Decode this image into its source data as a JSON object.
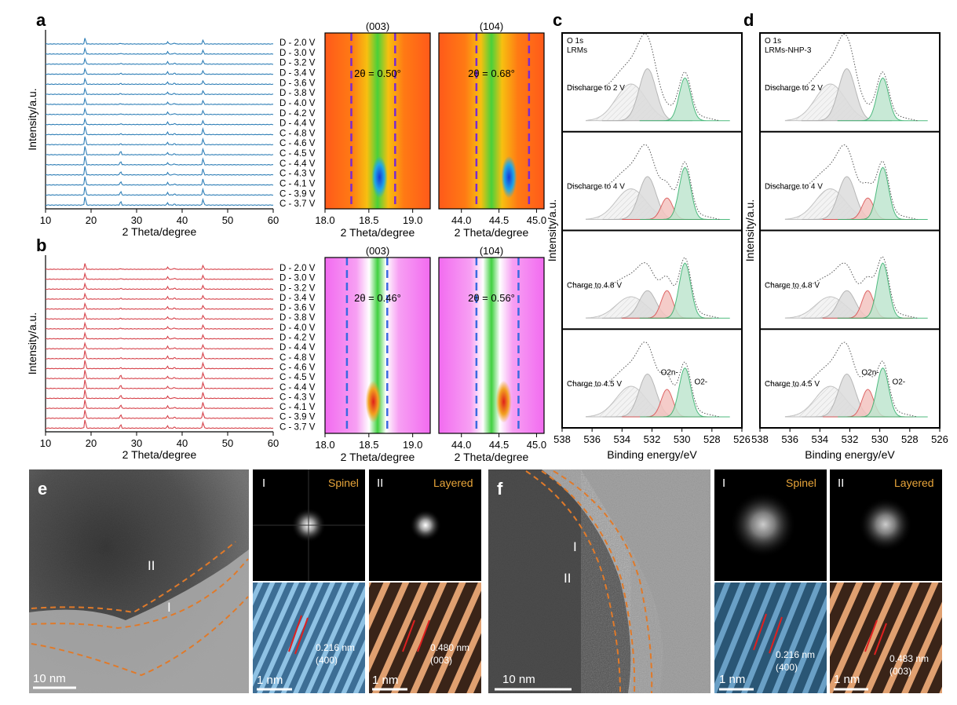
{
  "chart_data": [
    {
      "panel": "a",
      "type": "line",
      "xlabel": "2 Theta/degree",
      "ylabel": "Intensity/a.u.",
      "xlim": [
        10,
        60
      ],
      "xticks": [
        10,
        20,
        30,
        40,
        50,
        60
      ],
      "color": "#2f7fb7",
      "series_labels": [
        "D - 2.0 V",
        "D - 3.0 V",
        "D - 3.2 V",
        "D - 3.4 V",
        "D - 3.6 V",
        "D - 3.8 V",
        "D - 4.0 V",
        "D - 4.2 V",
        "D - 4.4 V",
        "C - 4.8 V",
        "C - 4.6 V",
        "C - 4.5 V",
        "C - 4.4 V",
        "C - 4.3 V",
        "C - 4.1 V",
        "C - 3.9 V",
        "C - 3.7 V"
      ],
      "peaks_2theta": [
        18.7,
        26.5,
        36.8,
        38.3,
        44.6
      ]
    },
    {
      "panel": "b",
      "type": "line",
      "xlabel": "2 Theta/degree",
      "ylabel": "Intensity/a.u.",
      "xlim": [
        10,
        60
      ],
      "xticks": [
        10,
        20,
        30,
        40,
        50,
        60
      ],
      "color": "#d6434b",
      "series_labels": [
        "D - 2.0 V",
        "D - 3.0 V",
        "D - 3.2 V",
        "D - 3.4 V",
        "D - 3.6 V",
        "D - 3.8 V",
        "D - 4.0 V",
        "D - 4.2 V",
        "D - 4.4 V",
        "C - 4.8 V",
        "C - 4.6 V",
        "C - 4.5 V",
        "C - 4.4 V",
        "C - 4.3 V",
        "C - 4.1 V",
        "C - 3.9 V",
        "C - 3.7 V"
      ],
      "peaks_2theta": [
        18.7,
        26.5,
        36.8,
        38.3,
        44.6
      ]
    },
    {
      "panel": "a-contour",
      "type": "heatmap",
      "xlabel": "2 Theta/degree",
      "maps": [
        {
          "title": "(003)",
          "xlim": [
            18.0,
            19.2
          ],
          "xticks": [
            "18.0",
            "18.5",
            "19.0"
          ],
          "dashed_lines": [
            18.3,
            18.8
          ],
          "annotation": "2θ = 0.50°"
        },
        {
          "title": "(104)",
          "xlim": [
            43.7,
            45.1
          ],
          "xticks": [
            "44.0",
            "44.5",
            "45.0"
          ],
          "dashed_lines": [
            44.2,
            44.9
          ],
          "annotation": "2θ = 0.68°"
        }
      ]
    },
    {
      "panel": "b-contour",
      "type": "heatmap",
      "xlabel": "2 Theta/degree",
      "maps": [
        {
          "title": "(003)",
          "xlim": [
            18.0,
            19.2
          ],
          "xticks": [
            "18.0",
            "18.5",
            "19.0"
          ],
          "dashed_lines": [
            18.25,
            18.71
          ],
          "annotation": "2θ = 0.46°"
        },
        {
          "title": "(104)",
          "xlim": [
            43.7,
            45.1
          ],
          "xticks": [
            "44.0",
            "44.5",
            "45.0"
          ],
          "dashed_lines": [
            44.2,
            44.76
          ],
          "annotation": "2θ = 0.56°"
        }
      ]
    },
    {
      "panel": "c",
      "type": "line",
      "title": "O 1s",
      "subtitle": "LRMs",
      "xlabel": "Binding energy/eV",
      "ylabel": "Intensity/a.u.",
      "xlim": [
        538,
        526
      ],
      "xticks": [
        "538",
        "536",
        "534",
        "532",
        "530",
        "528",
        "526"
      ],
      "rows": [
        "Discharge to 2 V",
        "Discharge to 4 V",
        "Charge to 4.8 V",
        "Charge to 4.5 V"
      ],
      "components": {
        "O2n_eV": 531.0,
        "O2-_eV": 529.8,
        "surface1_eV": 532.3,
        "surface2_eV": 533.4
      },
      "annotations": [
        "O2n-",
        "O2-"
      ]
    },
    {
      "panel": "d",
      "type": "line",
      "title": "O 1s",
      "subtitle": "LRMs-NHP-3",
      "xlabel": "Binding energy/eV",
      "ylabel": "Intensity/a.u.",
      "xlim": [
        538,
        526
      ],
      "xticks": [
        "538",
        "536",
        "534",
        "532",
        "530",
        "528",
        "526"
      ],
      "rows": [
        "Discharge to 2 V",
        "Discharge to 4 V",
        "Charge to 4.8 V",
        "Charge to 4.5 V"
      ],
      "components": {
        "O2n_eV": 530.8,
        "O2-_eV": 529.8,
        "surface1_eV": 532.2,
        "surface2_eV": 533.3
      },
      "annotations": [
        "O2n-",
        "O2-"
      ]
    }
  ],
  "panels": {
    "a": "a",
    "b": "b",
    "c": "c",
    "d": "d",
    "e": "e",
    "f": "f"
  },
  "tem": {
    "e": {
      "scale_main": "10 nm",
      "regions": [
        "II",
        "I"
      ],
      "fft": [
        {
          "roman": "I",
          "phase": "Spinel"
        },
        {
          "roman": "II",
          "phase": "Layered"
        }
      ],
      "lattice": [
        {
          "scale": "1 nm",
          "d": "0.216 nm",
          "plane": "(400)"
        },
        {
          "scale": "1 nm",
          "d": "0.480 nm",
          "plane": "(003)"
        }
      ]
    },
    "f": {
      "scale_main": "10 nm",
      "regions": [
        "I",
        "II"
      ],
      "fft": [
        {
          "roman": "I",
          "phase": "Spinel"
        },
        {
          "roman": "II",
          "phase": "Layered"
        }
      ],
      "lattice": [
        {
          "scale": "1 nm",
          "d": "0.216 nm",
          "plane": "(400)"
        },
        {
          "scale": "1 nm",
          "d": "0.483 nm",
          "plane": "(003)"
        }
      ]
    }
  },
  "colors": {
    "blue": "#2f7fb7",
    "red": "#d6434b",
    "green": "#3fb07a",
    "fit_red": "#e05a5a",
    "orange_dash": "#e07a2a",
    "gold": "#e8a53a"
  }
}
